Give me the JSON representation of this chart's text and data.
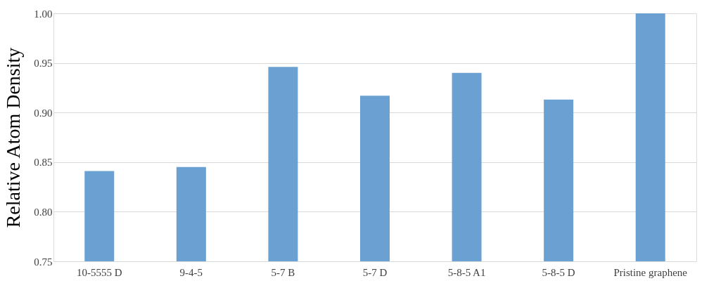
{
  "chart_data": {
    "type": "bar",
    "ylabel": "Relative Atom Density",
    "categories": [
      "10-5555 D",
      "9-4-5",
      "5-7 B",
      "5-7 D",
      "5-8-5 A1",
      "5-8-5 D",
      "Pristine graphene"
    ],
    "values": [
      0.841,
      0.845,
      0.946,
      0.917,
      0.94,
      0.913,
      1.0
    ],
    "color": "#6aa1d2",
    "ylim": [
      0.75,
      1.0
    ],
    "yticks": [
      {
        "value": 0.75,
        "label": "0.75"
      },
      {
        "value": 0.8,
        "label": "0.80"
      },
      {
        "value": 0.85,
        "label": "0.85"
      },
      {
        "value": 0.9,
        "label": "0.90"
      },
      {
        "value": 0.95,
        "label": "0.95"
      },
      {
        "value": 1.0,
        "label": "1.00"
      }
    ],
    "grid": "y"
  }
}
